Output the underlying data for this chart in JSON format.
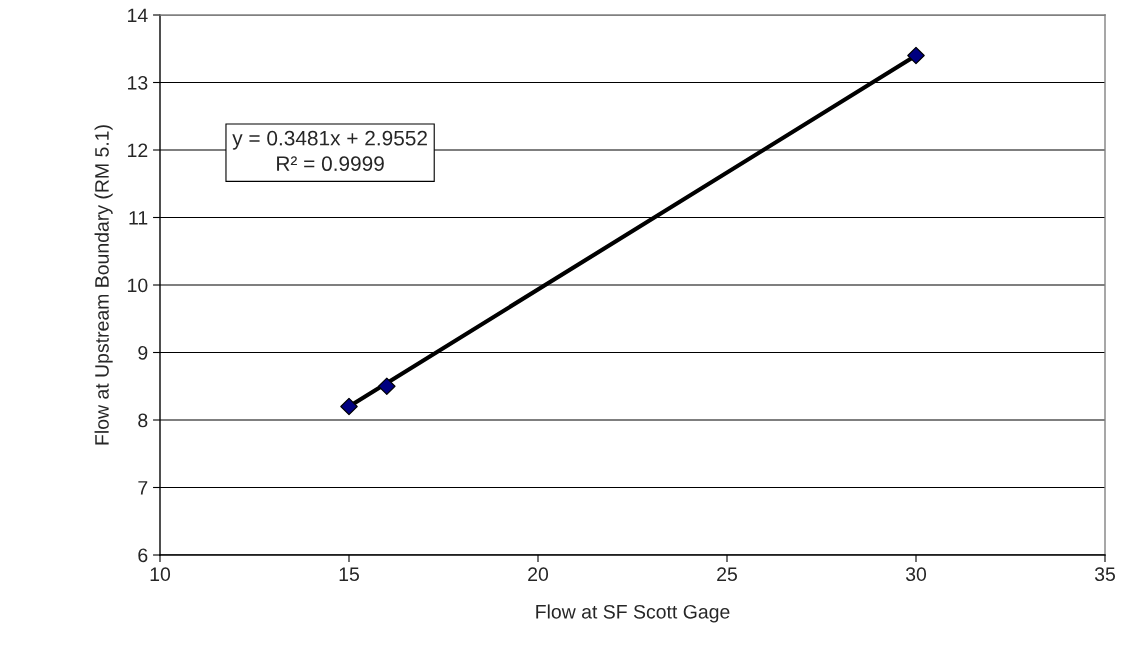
{
  "chart_data": {
    "type": "scatter",
    "xlabel": "Flow at SF Scott Gage",
    "ylabel": "Flow at Upstream Boundary (RM 5.1)",
    "series": [
      {
        "color": "#000080",
        "x": [
          15,
          16,
          30
        ],
        "values": [
          8.2,
          8.5,
          13.4
        ],
        "marker": "diamond"
      },
      {
        "type": "line",
        "color": "#000000",
        "x": [
          15,
          30
        ],
        "values": [
          8.2,
          13.4
        ],
        "marker": "none",
        "line_style": "solid"
      }
    ],
    "annotations": [
      "y = 0.3481x + 2.9552",
      "R² = 0.9999"
    ],
    "xlim": [
      10,
      35
    ],
    "xticks": [
      10,
      15,
      20,
      25,
      30,
      35
    ],
    "ylim": [
      6,
      14
    ],
    "yticks": [
      6,
      7,
      8,
      9,
      10,
      11,
      12,
      13,
      14
    ],
    "grid": "y",
    "legend": false
  }
}
